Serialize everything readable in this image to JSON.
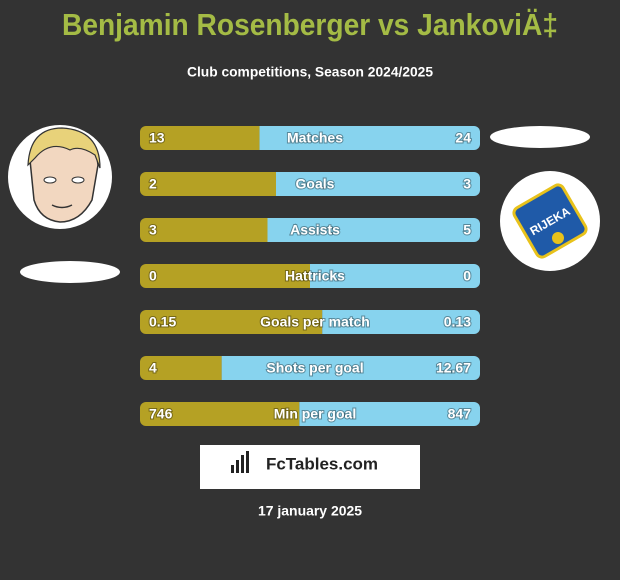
{
  "header": {
    "title": "Benjamin Rosenberger vs JankoviÄ‡",
    "subtitle": "Club competitions, Season 2024/2025"
  },
  "rows": [
    {
      "label": "Matches",
      "left": 13,
      "right": 24
    },
    {
      "label": "Goals",
      "left": 2,
      "right": 3
    },
    {
      "label": "Assists",
      "left": 3,
      "right": 5
    },
    {
      "label": "Hattricks",
      "left": 0,
      "right": 0
    },
    {
      "label": "Goals per match",
      "left": 0.15,
      "right": 0.13
    },
    {
      "label": "Shots per goal",
      "left": 4,
      "right": 12.67
    },
    {
      "label": "Min per goal",
      "left": 746,
      "right": 847
    }
  ],
  "brand": "FcTables.com",
  "date": "17 january 2025"
}
